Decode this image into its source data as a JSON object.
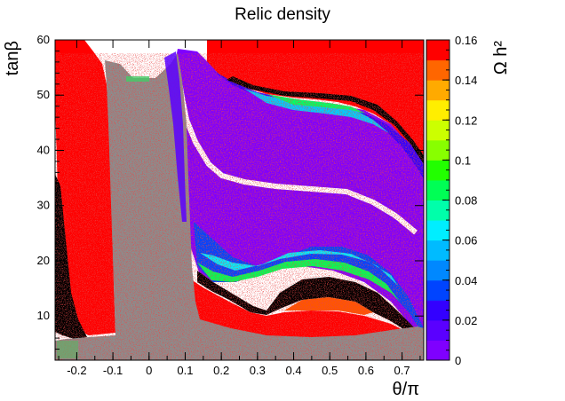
{
  "chart_data": {
    "type": "heatmap",
    "title": "Relic density",
    "xlabel": "θ/π",
    "ylabel": "tanβ",
    "zlabel": "Ω h²",
    "xlim": [
      -0.26,
      0.76
    ],
    "ylim": [
      2,
      60
    ],
    "zlim": [
      0,
      0.16
    ],
    "x_ticks": [
      -0.2,
      -0.1,
      0,
      0.1,
      0.2,
      0.3,
      0.4,
      0.5,
      0.6,
      0.7
    ],
    "y_ticks": [
      10,
      20,
      30,
      40,
      50,
      60
    ],
    "z_ticks": [
      0,
      0.02,
      0.04,
      0.06,
      0.08,
      0.1,
      0.12,
      0.14,
      0.16
    ],
    "x_tick_labels": [
      "-0.2",
      "-0.1",
      "0",
      "0.1",
      "0.2",
      "0.3",
      "0.4",
      "0.5",
      "0.6",
      "0.7"
    ],
    "y_tick_labels": [
      "10",
      "20",
      "30",
      "40",
      "50",
      "60"
    ],
    "z_tick_labels": [
      "0",
      "0.02",
      "0.04",
      "0.06",
      "0.08",
      "0.1",
      "0.12",
      "0.14",
      "0.16"
    ],
    "palette": [
      "#7f00ff",
      "#5a00ff",
      "#3300ff",
      "#0044ff",
      "#0088ff",
      "#00bbff",
      "#00eeff",
      "#00ffaa",
      "#00ff55",
      "#22ff00",
      "#88ff00",
      "#ccff00",
      "#ffee00",
      "#ffaa00",
      "#ff6600",
      "#ff0000"
    ],
    "region_colors": {
      "overabundant": "#ff0000",
      "excluded": "#000000",
      "scan_noise_gray": "#8c8c8c",
      "scan_noise_red": "#d01010",
      "blank": "#ffffff"
    }
  }
}
